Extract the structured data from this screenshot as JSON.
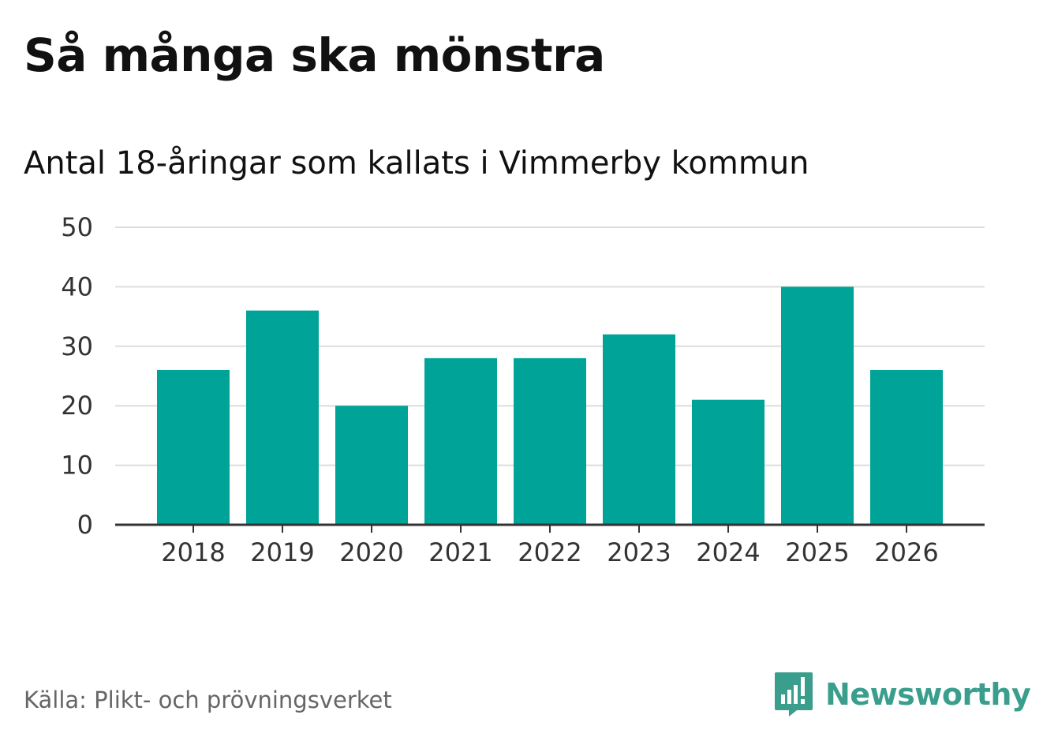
{
  "title": "Så många ska mönstra",
  "subtitle": "Antal 18-åringar som kallats i Vimmerby kommun",
  "source": "Källa: Plikt- och prövningsverket",
  "brand": {
    "name": "Newsworthy",
    "icon": "newsworthy-logo-icon",
    "color": "#3a9e8d"
  },
  "colors": {
    "bar": "#00a398",
    "grid": "#dddddd",
    "axis": "#333333",
    "tick_text": "#333333"
  },
  "chart_data": {
    "type": "bar",
    "title": "Så många ska mönstra",
    "subtitle": "Antal 18-åringar som kallats i Vimmerby kommun",
    "categories": [
      "2018",
      "2019",
      "2020",
      "2021",
      "2022",
      "2023",
      "2024",
      "2025",
      "2026"
    ],
    "values": [
      26,
      36,
      20,
      28,
      28,
      32,
      21,
      40,
      26
    ],
    "ylim": [
      0,
      50
    ],
    "yticks": [
      0,
      10,
      20,
      30,
      40,
      50
    ],
    "grid": true,
    "legend": "none"
  }
}
